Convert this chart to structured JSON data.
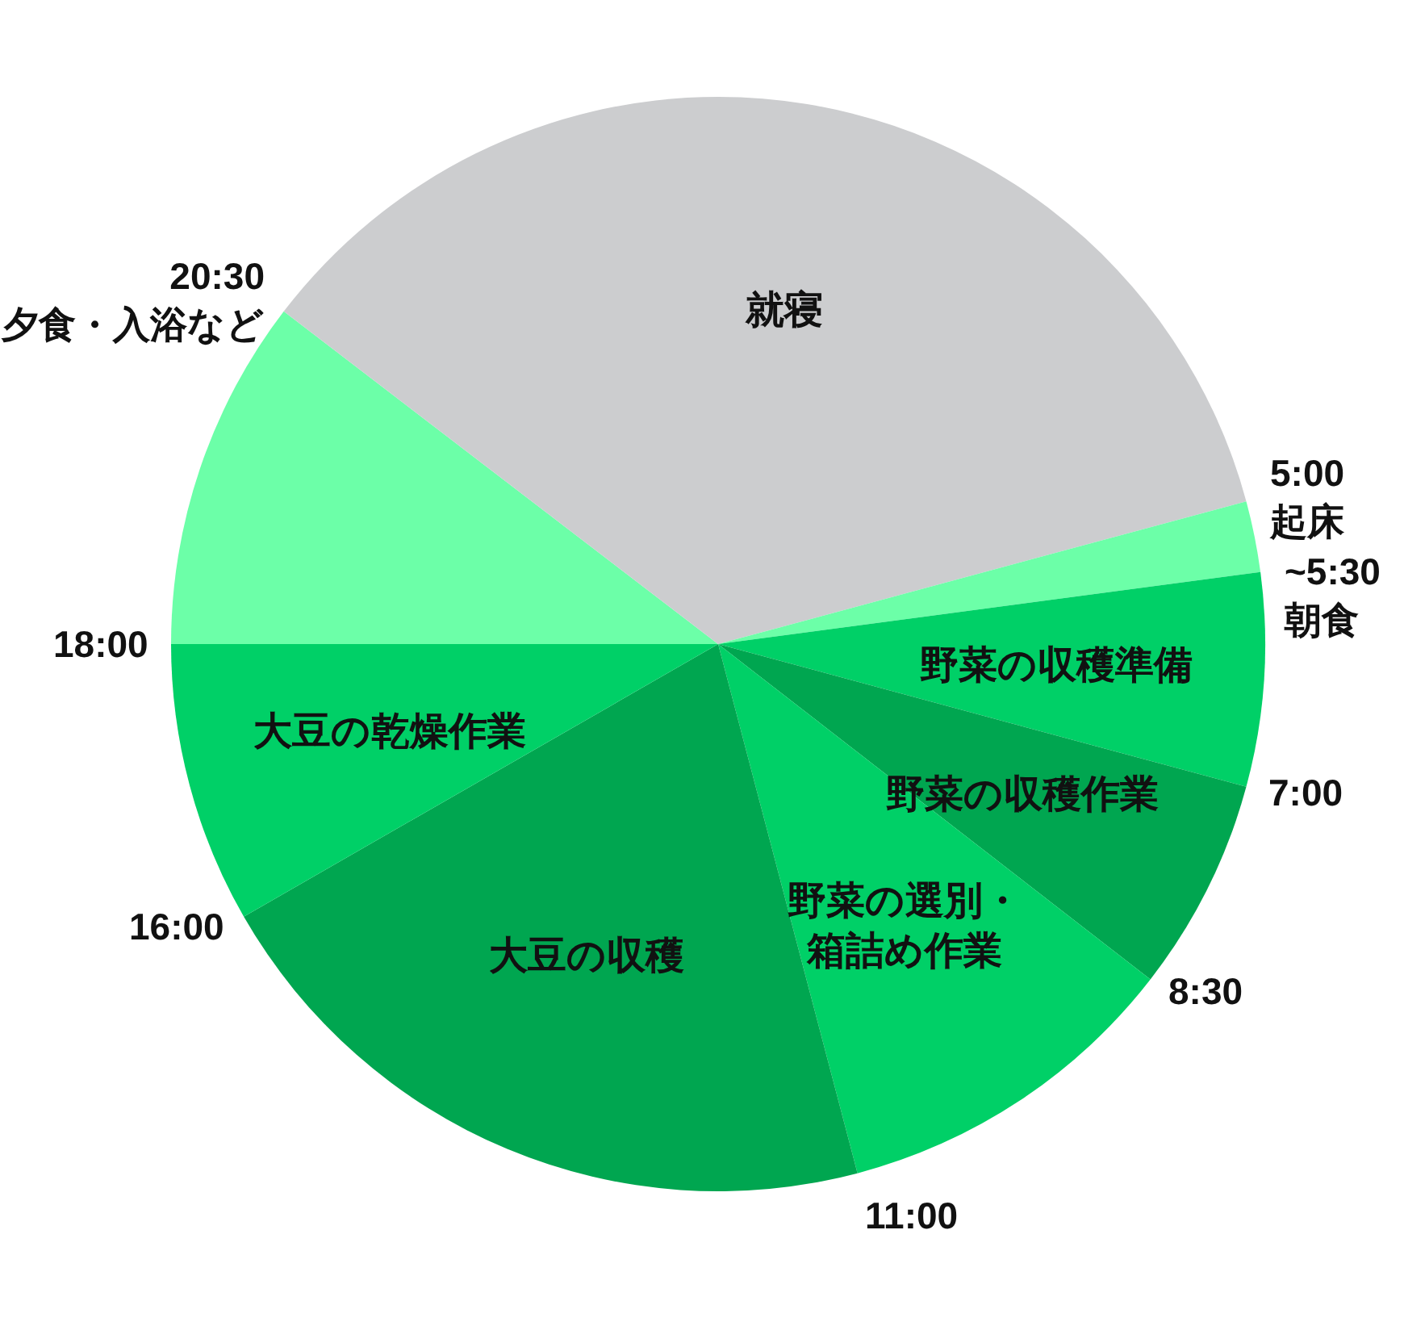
{
  "chart_data": {
    "type": "pie",
    "categories": [
      "就寝",
      null,
      "野菜の収穫準備",
      "野菜の収穫作業",
      "野菜の選別・箱詰め作業",
      "大豆の収穫",
      "大豆の乾燥作業",
      null,
      null
    ],
    "values": [
      20.8,
      2.1,
      6.3,
      6.3,
      10.4,
      20.8,
      8.3,
      10.4,
      14.6
    ],
    "colors": [
      "#cccdcf",
      "#6cffa8",
      "#00d067",
      "#00a650",
      "#00d067",
      "#00a650",
      "#00d067",
      "#6cffa8",
      "#cccdcf"
    ],
    "annotations": [
      "5:00\n起床",
      "~5:30\n朝食",
      "7:00",
      "8:30",
      "11:00",
      "16:00",
      "18:00",
      "20:30\n夕食・入浴など"
    ]
  }
}
